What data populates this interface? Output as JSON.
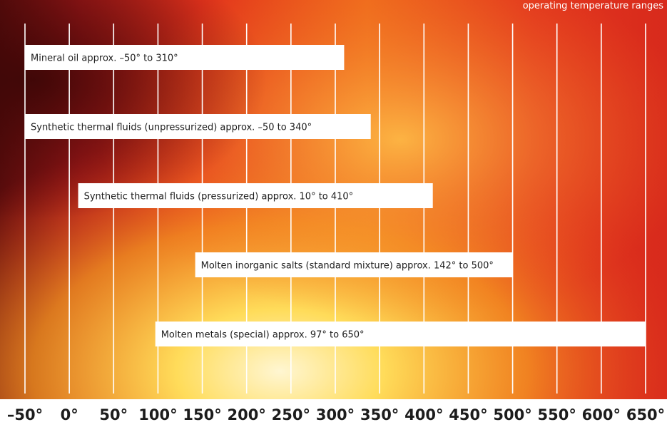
{
  "header_text": "operating temperature ranges",
  "colors": {
    "background_deep_red": "#7a1010",
    "background_red": "#e0261c",
    "background_orange": "#f07a1e",
    "background_yellow": "#ffd24a",
    "background_glow": "#fff3c4",
    "gridline": "#ffffff",
    "bar_fill": "#ffffff",
    "text": "#1e1e1e"
  },
  "chart_data": {
    "type": "bar",
    "orientation": "horizontal",
    "title": "",
    "xlabel": "",
    "ylabel": "",
    "unit": "°",
    "xlim": [
      -50,
      650
    ],
    "x_ticks": [
      -50,
      0,
      50,
      100,
      150,
      200,
      250,
      300,
      350,
      400,
      450,
      500,
      550,
      600,
      650
    ],
    "x_tick_labels": [
      "–50°",
      "0°",
      "50°",
      "100°",
      "150°",
      "200°",
      "250°",
      "300°",
      "350°",
      "400°",
      "450°",
      "500°",
      "550°",
      "600°",
      "650°"
    ],
    "grid": true,
    "legend": "none",
    "ranges": [
      {
        "label": "Mineral oil approx. –50° to 310°",
        "start": -50,
        "end": 310
      },
      {
        "label": "Synthetic thermal fluids (unpressurized) approx. –50 to 340°",
        "start": -50,
        "end": 340
      },
      {
        "label": "Synthetic thermal fluids (pressurized) approx. 10° to 410°",
        "start": 10,
        "end": 410
      },
      {
        "label": "Molten inorganic salts (standard mixture) approx. 142° to 500°",
        "start": 142,
        "end": 500
      },
      {
        "label": "Molten metals (special) approx. 97° to 650°",
        "start": 97,
        "end": 650
      }
    ]
  }
}
